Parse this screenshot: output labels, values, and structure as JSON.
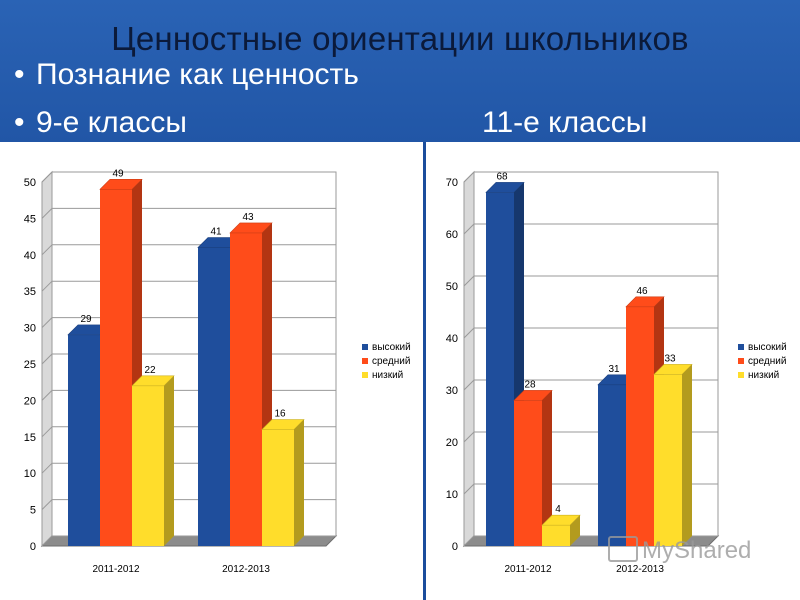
{
  "slide": {
    "title": "Ценностные ориентации школьников",
    "bullet1": "Познание как ценность",
    "bullet2": "9-е классы",
    "bullet3": "11-е классы",
    "bullet_mark": "•",
    "watermark": "MyShared"
  },
  "colors": {
    "высокий": "#1f4e9c",
    "средний": "#ff4c1a",
    "низкий": "#ffdd2b",
    "background": "#1c52a3"
  },
  "chart_data": [
    {
      "type": "bar",
      "categories": [
        "2011-2012",
        "2012-2013"
      ],
      "series": [
        {
          "name": "высокий",
          "values": [
            29,
            41
          ]
        },
        {
          "name": "средний",
          "values": [
            49,
            43
          ]
        },
        {
          "name": "низкий",
          "values": [
            22,
            16
          ]
        }
      ],
      "ylim": [
        0,
        50
      ],
      "yticks": [
        0,
        5,
        10,
        15,
        20,
        25,
        30,
        35,
        40,
        45,
        50
      ],
      "grid": true,
      "legend": "right",
      "style": "3d-columns"
    },
    {
      "type": "bar",
      "categories": [
        "2011-2012",
        "2012-2013"
      ],
      "series": [
        {
          "name": "высокий",
          "values": [
            68,
            31
          ]
        },
        {
          "name": "средний",
          "values": [
            28,
            46
          ]
        },
        {
          "name": "низкий",
          "values": [
            4,
            33
          ]
        }
      ],
      "ylim": [
        0,
        70
      ],
      "yticks": [
        0,
        10,
        20,
        30,
        40,
        50,
        60,
        70
      ],
      "grid": true,
      "legend": "right",
      "style": "3d-columns"
    }
  ]
}
